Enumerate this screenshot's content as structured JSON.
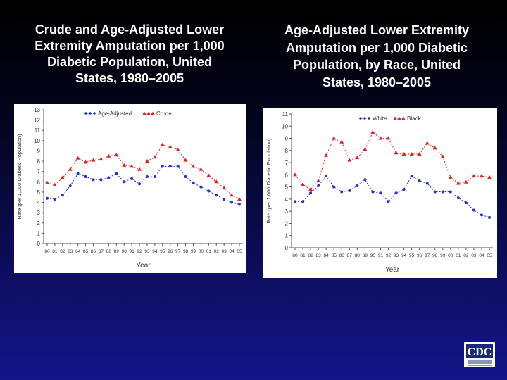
{
  "slide": {
    "left_title": "Crude and Age-Adjusted Lower\nExtremity Amputation per 1,000\nDiabetic Population, United\nStates, 1980–2005",
    "right_title": "Age-Adjusted Lower Extremity\nAmputation per 1,000 Diabetic\nPopulation, by Race, United\nStates, 1980–2005",
    "logo_text": "CDC"
  },
  "colors": {
    "background_top": "#000000",
    "background_bottom": "#14148a",
    "series_blue": "#2233cc",
    "series_red": "#dd2222"
  },
  "chart_data": [
    {
      "type": "line",
      "title": "Crude and Age-Adjusted Lower Extremity Amputation per 1,000 Diabetic Population, United States, 1980–2005",
      "xlabel": "Year",
      "ylabel": "Rate (per 1,000 Diabetic Population)",
      "ylim": [
        0,
        13
      ],
      "y_ticks": [
        0,
        1,
        2,
        3,
        4,
        5,
        6,
        7,
        8,
        9,
        10,
        11,
        12,
        13
      ],
      "categories": [
        "80",
        "81",
        "82",
        "83",
        "84",
        "85",
        "86",
        "87",
        "88",
        "89",
        "90",
        "91",
        "92",
        "93",
        "94",
        "95",
        "96",
        "97",
        "98",
        "99",
        "00",
        "01",
        "02",
        "03",
        "04",
        "05"
      ],
      "legend_position": "top",
      "grid": false,
      "series": [
        {
          "name": "Age-Adjusted",
          "color": "#2233cc",
          "marker": "circle",
          "values": [
            4.4,
            4.3,
            4.7,
            5.6,
            6.8,
            6.5,
            6.2,
            6.2,
            6.4,
            6.8,
            6.0,
            6.3,
            5.8,
            6.5,
            6.5,
            7.5,
            7.5,
            7.5,
            6.5,
            5.9,
            5.5,
            5.1,
            4.7,
            4.3,
            4.0,
            3.8
          ]
        },
        {
          "name": "Crude",
          "color": "#dd2222",
          "marker": "triangle",
          "values": [
            5.9,
            5.7,
            6.4,
            7.2,
            8.3,
            7.9,
            8.1,
            8.2,
            8.5,
            8.6,
            7.6,
            7.5,
            7.2,
            8.0,
            8.4,
            9.6,
            9.4,
            9.1,
            8.1,
            7.5,
            7.2,
            6.6,
            6.0,
            5.4,
            4.7,
            4.3
          ]
        }
      ]
    },
    {
      "type": "line",
      "title": "Age-Adjusted Lower Extremity Amputation per 1,000 Diabetic Population, by Race, United States, 1980–2005",
      "xlabel": "Year",
      "ylabel": "Rate (per 1,000 Diabetic Population)",
      "ylim": [
        0,
        11
      ],
      "y_ticks": [
        0,
        1,
        2,
        3,
        4,
        5,
        6,
        7,
        8,
        9,
        10,
        11
      ],
      "categories": [
        "80",
        "81",
        "82",
        "83",
        "84",
        "85",
        "86",
        "87",
        "88",
        "89",
        "90",
        "91",
        "92",
        "93",
        "94",
        "95",
        "96",
        "97",
        "98",
        "99",
        "00",
        "01",
        "02",
        "03",
        "04",
        "05"
      ],
      "legend_position": "top",
      "grid": false,
      "series": [
        {
          "name": "White",
          "color": "#2233cc",
          "marker": "circle",
          "values": [
            3.8,
            3.8,
            4.5,
            5.1,
            5.9,
            5.0,
            4.6,
            4.7,
            5.1,
            5.6,
            4.6,
            4.5,
            3.8,
            4.5,
            4.8,
            5.9,
            5.5,
            5.3,
            4.6,
            4.6,
            4.6,
            4.1,
            3.7,
            3.1,
            2.7,
            2.5
          ]
        },
        {
          "name": "Black",
          "color": "#dd2222",
          "marker": "triangle",
          "values": [
            6.0,
            5.2,
            4.8,
            5.5,
            7.6,
            9.0,
            8.7,
            7.2,
            7.4,
            8.1,
            9.5,
            9.0,
            9.0,
            7.8,
            7.7,
            7.7,
            7.7,
            8.6,
            8.2,
            7.5,
            5.8,
            5.3,
            5.4,
            5.9,
            5.9,
            5.8
          ]
        }
      ]
    }
  ]
}
